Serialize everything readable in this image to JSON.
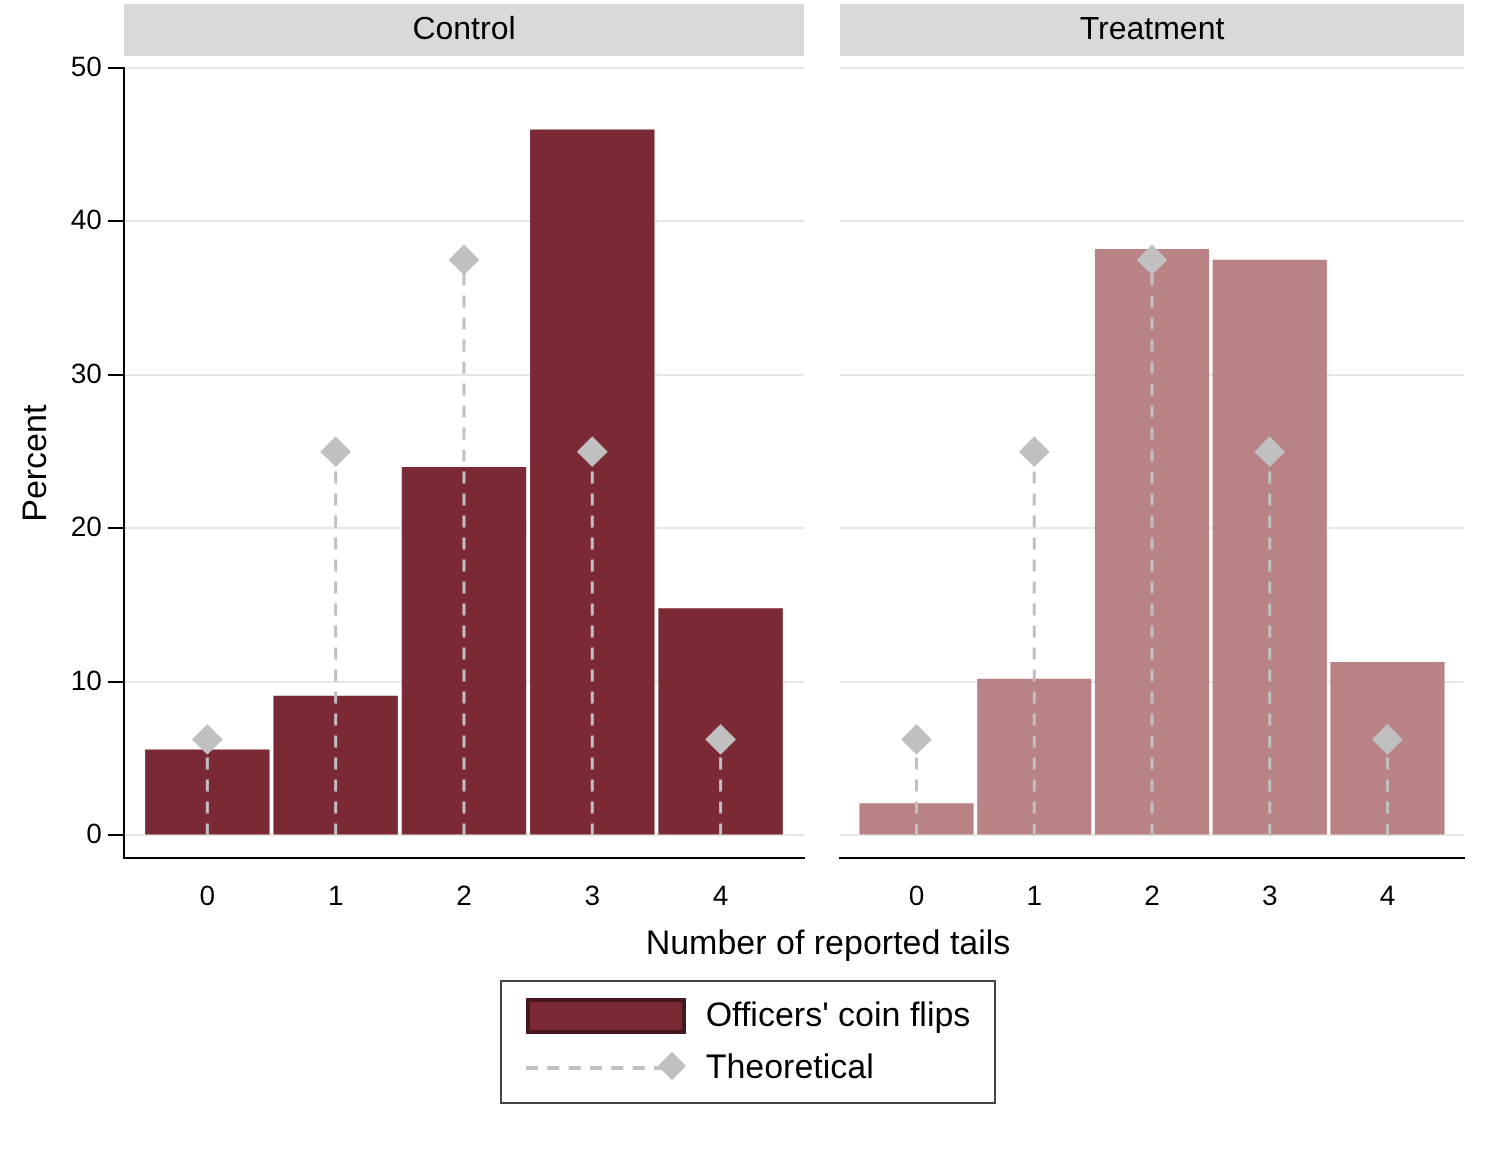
{
  "chart_data": [
    {
      "type": "bar",
      "title": "Control",
      "xlabel": "Number of reported tails",
      "ylabel": "Percent",
      "x": [
        0,
        1,
        2,
        3,
        4
      ],
      "xlim": [
        -0.65,
        4.65
      ],
      "xticks": [
        0,
        1,
        2,
        3,
        4
      ],
      "ylim": [
        -1.5,
        50
      ],
      "yticks": [
        0,
        10,
        20,
        30,
        40,
        50
      ],
      "grid": "y",
      "legend": "bottom",
      "series": [
        {
          "name": "Officers' coin flips",
          "color": "#7b2a35",
          "values": [
            5.6,
            9.1,
            24,
            46,
            14.8
          ]
        },
        {
          "name": "Theoretical",
          "type": "lollipop",
          "color": "#c0c0c0",
          "marker": "diamond",
          "line_style": "dashed",
          "values": [
            6.25,
            25,
            37.5,
            25,
            6.25
          ]
        }
      ]
    },
    {
      "type": "bar",
      "title": "Treatment",
      "x": [
        0,
        1,
        2,
        3,
        4
      ],
      "xlim": [
        -0.65,
        4.65
      ],
      "xticks": [
        0,
        1,
        2,
        3,
        4
      ],
      "ylim": [
        -1.5,
        50
      ],
      "yticks": [
        0,
        10,
        20,
        30,
        40,
        50
      ],
      "grid": "y",
      "tick_labels": "x",
      "series": [
        {
          "color": "#b98285",
          "values": [
            2.1,
            10.2,
            38.2,
            37.5,
            11.3
          ]
        },
        {
          "type": "lollipop",
          "color": "#c0c0c0",
          "marker": "diamond",
          "line_style": "dashed",
          "values": [
            6.25,
            25,
            37.5,
            25,
            6.25
          ]
        }
      ]
    }
  ]
}
